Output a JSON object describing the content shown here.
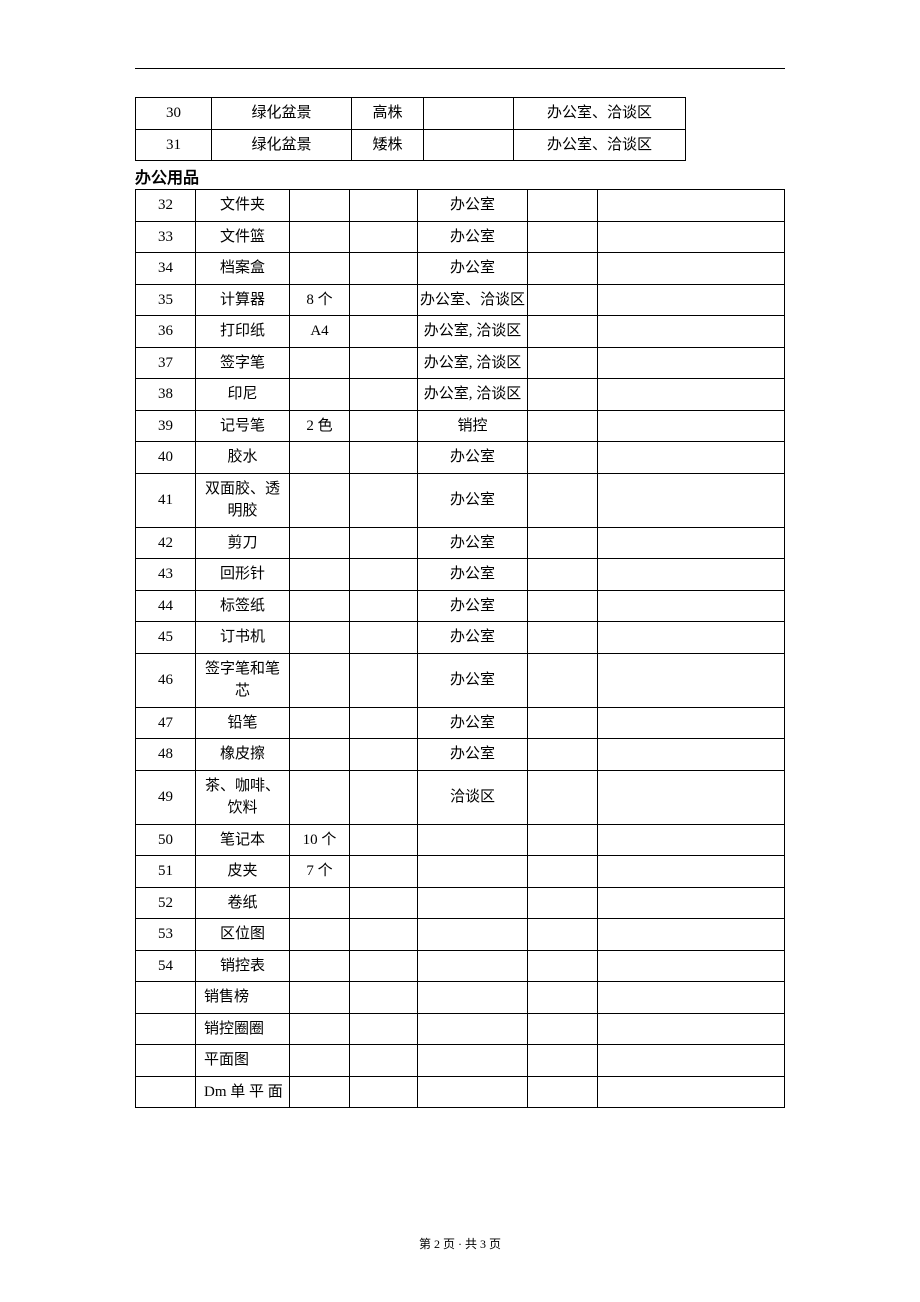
{
  "top_rule_color": "#000000",
  "background_color": "#ffffff",
  "text_color": "#000000",
  "table1": {
    "rows": [
      {
        "no": "30",
        "name": "绿化盆景",
        "spec": "高株",
        "qty": "",
        "loc": "办公室、洽谈区"
      },
      {
        "no": "31",
        "name": "绿化盆景",
        "spec": "矮株",
        "qty": "",
        "loc": "办公室、洽谈区"
      }
    ]
  },
  "section_title": "办公用品",
  "table2": {
    "rows": [
      {
        "no": "32",
        "name": "文件夹",
        "spec": "",
        "c4": "",
        "loc": "办公室",
        "c6": "",
        "c7": ""
      },
      {
        "no": "33",
        "name": "文件篮",
        "spec": "",
        "c4": "",
        "loc": "办公室",
        "c6": "",
        "c7": ""
      },
      {
        "no": "34",
        "name": "档案盒",
        "spec": "",
        "c4": "",
        "loc": "办公室",
        "c6": "",
        "c7": ""
      },
      {
        "no": "35",
        "name": "计算器",
        "spec": "8 个",
        "c4": "",
        "loc": "办公室、洽谈区",
        "c6": "",
        "c7": ""
      },
      {
        "no": "36",
        "name": "打印纸",
        "spec": "A4",
        "c4": "",
        "loc": "办公室, 洽谈区",
        "c6": "",
        "c7": ""
      },
      {
        "no": "37",
        "name": "签字笔",
        "spec": "",
        "c4": "",
        "loc": "办公室, 洽谈区",
        "c6": "",
        "c7": ""
      },
      {
        "no": "38",
        "name": "印尼",
        "spec": "",
        "c4": "",
        "loc": "办公室, 洽谈区",
        "c6": "",
        "c7": ""
      },
      {
        "no": "39",
        "name": "记号笔",
        "spec": "2 色",
        "c4": "",
        "loc": "销控",
        "c6": "",
        "c7": ""
      },
      {
        "no": "40",
        "name": "胶水",
        "spec": "",
        "c4": "",
        "loc": "办公室",
        "c6": "",
        "c7": ""
      },
      {
        "no": "41",
        "name": "双面胶、透明胶",
        "spec": "",
        "c4": "",
        "loc": "办公室",
        "c6": "",
        "c7": ""
      },
      {
        "no": "42",
        "name": "剪刀",
        "spec": "",
        "c4": "",
        "loc": "办公室",
        "c6": "",
        "c7": ""
      },
      {
        "no": "43",
        "name": "回形针",
        "spec": "",
        "c4": "",
        "loc": "办公室",
        "c6": "",
        "c7": ""
      },
      {
        "no": "44",
        "name": "标签纸",
        "spec": "",
        "c4": "",
        "loc": "办公室",
        "c6": "",
        "c7": ""
      },
      {
        "no": "45",
        "name": "订书机",
        "spec": "",
        "c4": "",
        "loc": "办公室",
        "c6": "",
        "c7": ""
      },
      {
        "no": "46",
        "name": "签字笔和笔芯",
        "spec": "",
        "c4": "",
        "loc": "办公室",
        "c6": "",
        "c7": ""
      },
      {
        "no": "47",
        "name": "铅笔",
        "spec": "",
        "c4": "",
        "loc": "办公室",
        "c6": "",
        "c7": ""
      },
      {
        "no": "48",
        "name": "橡皮擦",
        "spec": "",
        "c4": "",
        "loc": "办公室",
        "c6": "",
        "c7": ""
      },
      {
        "no": "49",
        "name": "茶、咖啡、饮料",
        "spec": "",
        "c4": "",
        "loc": "洽谈区",
        "c6": "",
        "c7": ""
      },
      {
        "no": "50",
        "name": "笔记本",
        "spec": "10 个",
        "c4": "",
        "loc": "",
        "c6": "",
        "c7": ""
      },
      {
        "no": "51",
        "name": "皮夹",
        "spec": "7 个",
        "c4": "",
        "loc": "",
        "c6": "",
        "c7": ""
      },
      {
        "no": "52",
        "name": "卷纸",
        "spec": "",
        "c4": "",
        "loc": "",
        "c6": "",
        "c7": ""
      },
      {
        "no": "53",
        "name": "区位图",
        "spec": "",
        "c4": "",
        "loc": "",
        "c6": "",
        "c7": ""
      },
      {
        "no": "54",
        "name": "销控表",
        "spec": "",
        "c4": "",
        "loc": "",
        "c6": "",
        "c7": ""
      },
      {
        "no": "",
        "name": "销售榜",
        "spec": "",
        "c4": "",
        "loc": "",
        "c6": "",
        "c7": ""
      },
      {
        "no": "",
        "name": "销控圈圈",
        "spec": "",
        "c4": "",
        "loc": "",
        "c6": "",
        "c7": ""
      },
      {
        "no": "",
        "name": "平面图",
        "spec": "",
        "c4": "",
        "loc": "",
        "c6": "",
        "c7": ""
      },
      {
        "no": "",
        "name": "Dm 单 平 面",
        "spec": "",
        "c4": "",
        "loc": "",
        "c6": "",
        "c7": ""
      }
    ]
  },
  "footer": "第 2 页 · 共 3 页"
}
